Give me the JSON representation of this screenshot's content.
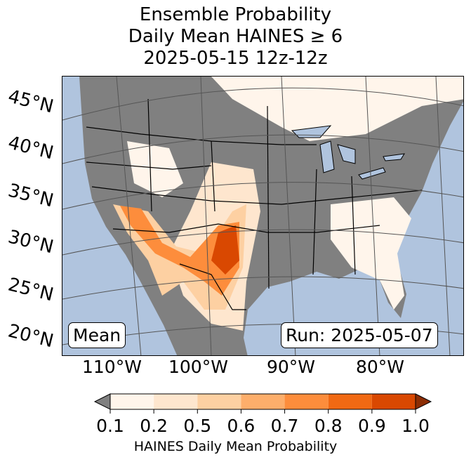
{
  "title": {
    "line1": "Ensemble Probability",
    "line2": "Daily Mean HAINES ≥ 6",
    "line3": "2025-05-15 12z-12z"
  },
  "lat_labels": [
    "45°N",
    "40°N",
    "35°N",
    "30°N",
    "25°N",
    "20°N"
  ],
  "lon_labels": [
    "110°W",
    "100°W",
    "90°W",
    "80°W"
  ],
  "annotations": {
    "left": "Mean",
    "right": "Run: 2025-05-07"
  },
  "colorbar": {
    "ticks": [
      "0.1",
      "0.2",
      "0.5",
      "0.6",
      "0.7",
      "0.8",
      "0.9",
      "1.0"
    ],
    "colors": [
      "#fff5eb",
      "#fee6ce",
      "#fdd0a2",
      "#fdae6b",
      "#fd8d3c",
      "#f16913",
      "#d94801"
    ],
    "under_color": "#808080",
    "over_color": "#8c2d04",
    "label": "HAINES Daily Mean Probability"
  },
  "colors": {
    "ocean": "#b0c4de",
    "land_below": "#808080"
  }
}
